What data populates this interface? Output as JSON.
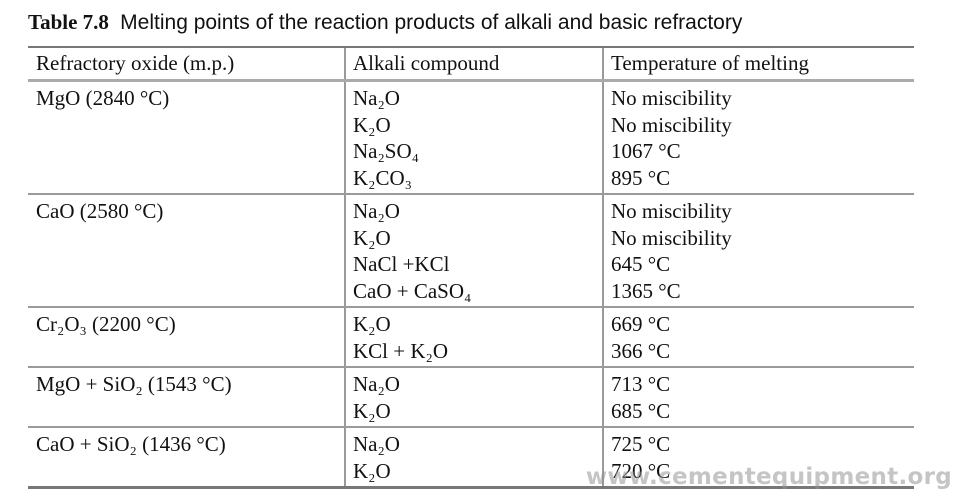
{
  "caption": {
    "number": "Table 7.8",
    "text": "Melting points of the reaction products of alkali and basic refractory"
  },
  "headers": [
    "Refractory oxide (m.p.)",
    "Alkali compound",
    "Temperature of melting"
  ],
  "rows": [
    {
      "oxide": "MgO (2840 °C)",
      "pairs": [
        {
          "compound": "Na₂O",
          "temp": "No miscibility"
        },
        {
          "compound": "K₂O",
          "temp": "No miscibility"
        },
        {
          "compound": "Na₂SO₄",
          "temp": "1067 °C"
        },
        {
          "compound": "K₂CO₃",
          "temp": "895 °C"
        }
      ]
    },
    {
      "oxide": "CaO (2580 °C)",
      "pairs": [
        {
          "compound": "Na₂O",
          "temp": "No miscibility"
        },
        {
          "compound": "K₂O",
          "temp": "No miscibility"
        },
        {
          "compound": "NaCl +KCl",
          "temp": "645 °C"
        },
        {
          "compound": "CaO + CaSO₄",
          "temp": "1365 °C"
        }
      ]
    },
    {
      "oxide": "Cr₂O₃ (2200 °C)",
      "pairs": [
        {
          "compound": "K₂O",
          "temp": "669 °C"
        },
        {
          "compound": "KCl + K₂O",
          "temp": "366 °C"
        }
      ]
    },
    {
      "oxide": "MgO + SiO₂ (1543 °C)",
      "pairs": [
        {
          "compound": "Na₂O",
          "temp": "713 °C"
        },
        {
          "compound": "K₂O",
          "temp": "685 °C"
        }
      ]
    },
    {
      "oxide": "CaO + SiO₂ (1436 °C)",
      "pairs": [
        {
          "compound": "Na₂O",
          "temp": "725 °C"
        },
        {
          "compound": "K₂O",
          "temp": "720 °C"
        }
      ]
    }
  ],
  "watermark": "www.cementequipment.org"
}
